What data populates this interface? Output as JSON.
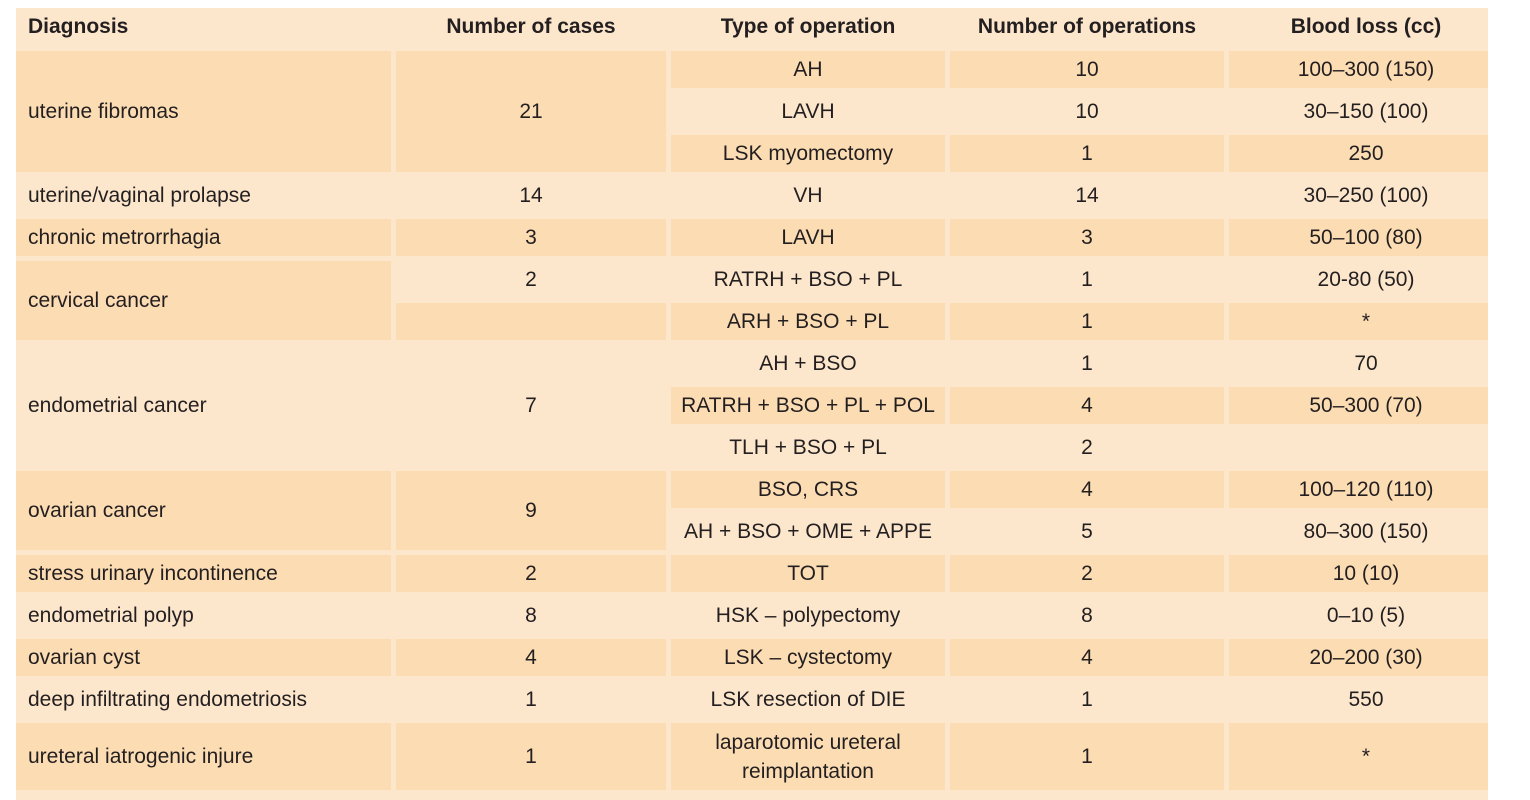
{
  "header": {
    "diagnosis": "Diagnosis",
    "cases": "Number of cases",
    "operation": "Type of operation",
    "operations": "Number of operations",
    "blood_loss": "Blood loss (cc)"
  },
  "rows": [
    {
      "diagnosis": "uterine fibromas",
      "cases": "21",
      "ops": [
        {
          "type": "AH",
          "count": "10",
          "blood": "100–300 (150)"
        },
        {
          "type": "LAVH",
          "count": "10",
          "blood": "30–150 (100)"
        },
        {
          "type": "LSK myomectomy",
          "count": "1",
          "blood": "250"
        }
      ]
    },
    {
      "diagnosis": "uterine/vaginal prolapse",
      "cases": "14",
      "ops": [
        {
          "type": "VH",
          "count": "14",
          "blood": "30–250 (100)"
        }
      ]
    },
    {
      "diagnosis": "chronic metrorrhagia",
      "cases": "3",
      "ops": [
        {
          "type": "LAVH",
          "count": "3",
          "blood": "50–100 (80)"
        }
      ]
    },
    {
      "diagnosis": "cervical cancer",
      "cases": "2",
      "ops": [
        {
          "type": "RATRH + BSO + PL",
          "count": "1",
          "blood": "20-80 (50)"
        },
        {
          "type": "ARH + BSO + PL",
          "count": "1",
          "blood": "*"
        }
      ]
    },
    {
      "diagnosis": "endometrial cancer",
      "cases": "7",
      "ops": [
        {
          "type": "AH + BSO",
          "count": "1",
          "blood": "70"
        },
        {
          "type": "RATRH + BSO + PL + POL",
          "count": "4",
          "blood": "50–300 (70)"
        },
        {
          "type": "TLH + BSO + PL",
          "count": "2",
          "blood": ""
        }
      ]
    },
    {
      "diagnosis": "ovarian cancer",
      "cases": "9",
      "ops": [
        {
          "type": "BSO, CRS",
          "count": "4",
          "blood": "100–120 (110)"
        },
        {
          "type": "AH + BSO + OME + APPE",
          "count": "5",
          "blood": "80–300 (150)"
        }
      ]
    },
    {
      "diagnosis": "stress urinary incontinence",
      "cases": "2",
      "ops": [
        {
          "type": "TOT",
          "count": "2",
          "blood": "10 (10)"
        }
      ]
    },
    {
      "diagnosis": "endometrial polyp",
      "cases": "8",
      "ops": [
        {
          "type": "HSK – polypectomy",
          "count": "8",
          "blood": "0–10 (5)"
        }
      ]
    },
    {
      "diagnosis": "ovarian cyst",
      "cases": "4",
      "ops": [
        {
          "type": "LSK – cystectomy",
          "count": "4",
          "blood": "20–200 (30)"
        }
      ]
    },
    {
      "diagnosis": "deep infiltrating endometriosis",
      "cases": "1",
      "ops": [
        {
          "type": "LSK resection of DIE",
          "count": "1",
          "blood": "550"
        }
      ]
    },
    {
      "diagnosis": "ureteral iatrogenic injure",
      "cases": "1",
      "ops": [
        {
          "type": "laparotomic ureteral reimplantation",
          "count": "1",
          "blood": "*"
        }
      ]
    }
  ],
  "colors": {
    "band_dark": "#fcdcb3",
    "band_light": "#fde7cc",
    "text": "#231f20"
  }
}
